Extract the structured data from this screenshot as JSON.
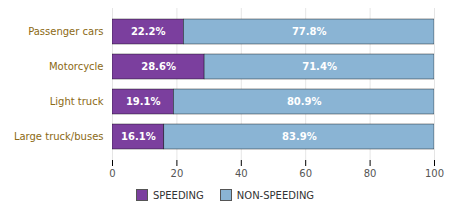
{
  "chart_data": {
    "type": "bar",
    "orientation": "horizontal",
    "stacked": true,
    "categories": [
      "Large truck/buses",
      "Light truck",
      "Motorcycle",
      "Passenger cars"
    ],
    "series": [
      {
        "name": "SPEEDING",
        "color": "#7b3f9e",
        "values": [
          16.1,
          19.1,
          28.6,
          22.2
        ],
        "value_labels": [
          "16.1%",
          "19.1%",
          "28.6%",
          "22.2%"
        ]
      },
      {
        "name": "NON-SPEEDING",
        "color": "#8ab4d4",
        "values": [
          83.9,
          80.9,
          71.4,
          77.8
        ],
        "value_labels": [
          "83.9%",
          "80.9%",
          "71.4%",
          "77.8%"
        ]
      }
    ],
    "xlim": [
      0,
      100
    ],
    "xticks": [
      0,
      20,
      40,
      60,
      80,
      100
    ],
    "grid": true,
    "legend": "bottom",
    "data_labels": true
  }
}
